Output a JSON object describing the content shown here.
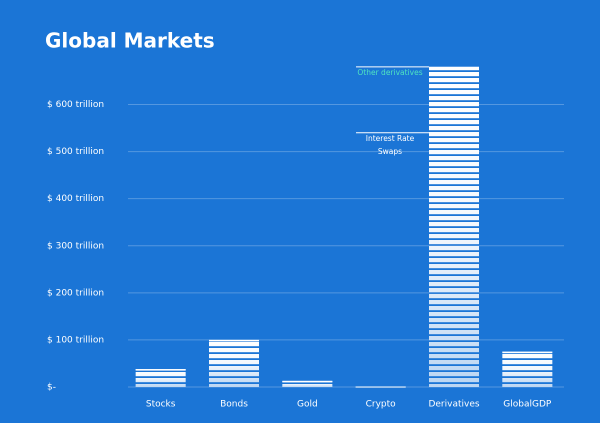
{
  "chart_data": {
    "type": "bar",
    "title": "Global Markets",
    "categories": [
      "Stocks",
      "Bonds",
      "Gold",
      "Crypto",
      "Derivatives",
      "GlobalGDP"
    ],
    "values": [
      38,
      100,
      13,
      1,
      680,
      75
    ],
    "color": "#ffffff",
    "background": "#1b75d6",
    "ylim": [
      0,
      720
    ],
    "yticks": [
      {
        "value": 0,
        "label": "$-"
      },
      {
        "value": 100,
        "label": "$ 100 trillion"
      },
      {
        "value": 200,
        "label": "$ 200 trillion"
      },
      {
        "value": 300,
        "label": "$ 300 trillion"
      },
      {
        "value": 400,
        "label": "$ 400 trillion"
      },
      {
        "value": 500,
        "label": "$ 500 trillion"
      },
      {
        "value": 600,
        "label": "$ 600 trillion"
      }
    ],
    "grid": true,
    "annotations": [
      {
        "lines": [
          "Other derivatives"
        ],
        "value": 680,
        "color": "#4fe3c1"
      },
      {
        "lines": [
          "Interest Rate",
          "Swaps"
        ],
        "value": 540,
        "color": "#ffffff"
      }
    ]
  }
}
